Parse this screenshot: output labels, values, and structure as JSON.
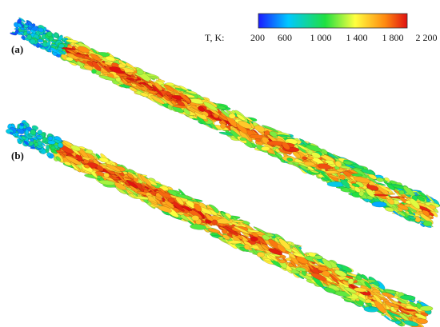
{
  "panels": [
    {
      "label": "(a)"
    },
    {
      "label": "(b)"
    }
  ],
  "colorbar": {
    "title": "T, K:",
    "ticks": [
      "200",
      "600",
      "1 000",
      "1 400",
      "1 800",
      "2 200"
    ],
    "tick_values": [
      200,
      600,
      1000,
      1400,
      1800,
      2200
    ],
    "range": [
      200,
      2200
    ],
    "colors": [
      "#1a1aff",
      "#00c8ff",
      "#20e040",
      "#ffff40",
      "#ff8a10",
      "#e01010"
    ]
  }
}
